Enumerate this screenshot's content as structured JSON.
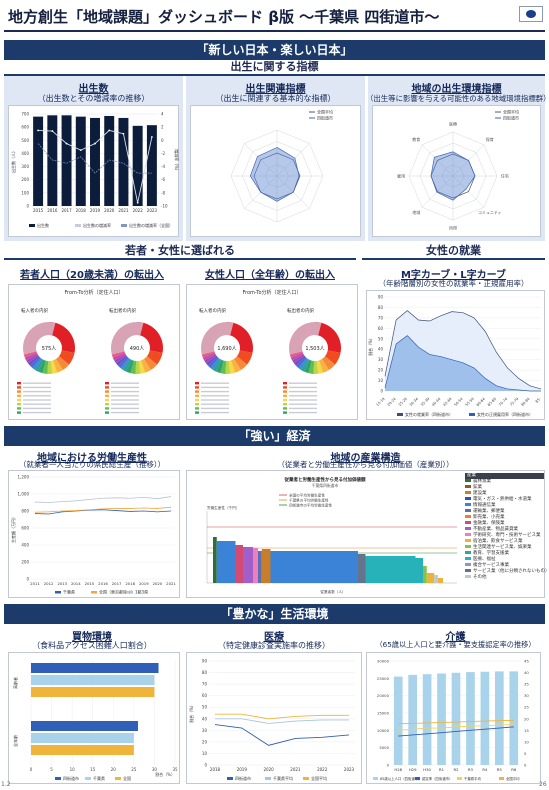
{
  "page": {
    "title": "地方創生「地域課題」ダッシュボード β版 〜千葉県 四街道市〜",
    "page_left": "1.2",
    "page_right": "26"
  },
  "section1": {
    "band": "「新しい日本・楽しい日本」",
    "sub": "出生に関する指標",
    "births": {
      "title": "出生数",
      "sub": "（出生数とその増減率の推移）",
      "chart_data": {
        "type": "bar",
        "categories": [
          "2015",
          "2016",
          "2017",
          "2018",
          "2019",
          "2020",
          "2021",
          "2022",
          "2023"
        ],
        "series": [
          {
            "name": "出生数",
            "values": [
              680,
              690,
              690,
              680,
              670,
              685,
              670,
              610,
              615
            ]
          },
          {
            "name": "出生数の増減率",
            "values": [
              1.5,
              1.4,
              -0.5,
              -1.5,
              -0.5,
              1.5,
              1.0,
              -9.5,
              0.5
            ]
          },
          {
            "name": "出生数の増減率（全国）",
            "values": [
              -0.5,
              -3.0,
              -3.5,
              -2.5,
              -5.0,
              -3.0,
              -3.5,
              -5.0,
              -5.0
            ]
          }
        ],
        "ylim": [
          0,
          700
        ],
        "y2lim": [
          -10,
          4
        ],
        "yticks": [
          "700",
          "600",
          "500",
          "400",
          "300",
          "200",
          "100",
          "0"
        ],
        "y2ticks": [
          "4",
          "2",
          "0",
          "-2",
          "-4",
          "-6",
          "-8",
          "-10"
        ],
        "ylabel": "出生数（人）",
        "y2label": "増減率（%）"
      }
    },
    "related": {
      "title": "出生関連指標",
      "sub": "（出生に関連する基本的な指標）",
      "legend": [
        "全国平均",
        "四街道市"
      ]
    },
    "environment": {
      "title": "地域の出生環境指標",
      "sub": "（出生等に影響を与える可能性のある地域環境指標群）",
      "legend": [
        "全国平均",
        "四街道市"
      ],
      "labels": [
        "医療",
        "保育",
        "住宅",
        "コミュニティ",
        "所得",
        "地域",
        "雇用",
        "教育"
      ]
    }
  },
  "section2": {
    "band_left": "若者・女性に選ばれる",
    "band_right": "女性の就業",
    "youth": {
      "title": "若者人口（20歳未満）の転出入",
      "chart_title": "From-To分析（定住人口）",
      "left_label": "転入者の内訳",
      "right_label": "転出者の内訳",
      "left_value": "575人",
      "right_value": "490人"
    },
    "women": {
      "title": "女性人口（全年齢）の転出入",
      "chart_title": "From-To分析（定住人口）",
      "left_label": "転入者の内訳",
      "right_label": "転出者の内訳",
      "left_value": "1,690人",
      "right_value": "1,503人"
    },
    "mcurve": {
      "title": "M字カーブ・L字カーブ",
      "sub": "（年齢階層別の女性の就業率・正規雇用率）",
      "ylabel": "割合（%）",
      "legend": [
        "女性の就業率（四街道市）",
        "女性の正規雇用率（四街道市）"
      ],
      "chart_data": {
        "type": "area",
        "categories": [
          "15-19",
          "20-24",
          "25-29",
          "30-34",
          "35-39",
          "40-44",
          "45-49",
          "50-54",
          "55-59",
          "60-64",
          "65-69",
          "70-74",
          "75-79",
          "80-84",
          "85-"
        ],
        "series": [
          {
            "name": "女性の就業率（四街道市）",
            "values": [
              14,
              68,
              77,
              68,
              67,
              72,
              76,
              75,
              70,
              57,
              37,
              22,
              12,
              5,
              2
            ]
          },
          {
            "name": "女性の正規雇用率（四街道市）",
            "values": [
              3,
              45,
              53,
              42,
              35,
              33,
              30,
              27,
              22,
              12,
              5,
              2,
              1,
              0,
              0
            ]
          }
        ],
        "ylim": [
          0,
          90
        ],
        "yticks": [
          "90",
          "80",
          "70",
          "60",
          "50",
          "40",
          "30",
          "20",
          "10",
          "0"
        ]
      }
    }
  },
  "section3": {
    "band": "「強い」経済",
    "productivity": {
      "title": "地域における労働生産性",
      "sub": "（就業者一人当たりの県民総生産（推移））",
      "ylabel": "生産額（万円）",
      "chart_data": {
        "type": "line",
        "categories": [
          "2011",
          "2012",
          "2013",
          "2014",
          "2015",
          "2016",
          "2017",
          "2018",
          "2019",
          "2020",
          "2021"
        ],
        "series": [
          {
            "name": "千葉県",
            "values": [
              770,
              765,
              790,
              800,
              810,
              815,
              805,
              795,
              800,
              790,
              800
            ]
          },
          {
            "name": "全国（東京都除く）",
            "values": [
              785,
              790,
              800,
              805,
              815,
              825,
              830,
              830,
              835,
              830,
              845
            ]
          },
          {
            "name": "1都3県",
            "values": [
              905,
              900,
              910,
              920,
              935,
              950,
              955,
              950,
              960,
              945,
              970
            ]
          }
        ],
        "ylim": [
          0,
          1200
        ],
        "yticks": [
          "1,200",
          "1,000",
          "800",
          "600",
          "400",
          "200",
          "0"
        ]
      },
      "legend": [
        "千葉県",
        "全国（東京都除く）",
        "1都3県"
      ]
    },
    "industry": {
      "title": "地域の産業構造",
      "sub": "（従業者と労働生産性から見る付加価値（産業別））",
      "chart_title": "従業者と労働生産性から見る付加価値額",
      "chart_sub": "千葉県四街道市",
      "lines": [
        "全国の平均労働生産性",
        "千葉県の平均労働生産性",
        "四街道市の平均労働生産性"
      ],
      "ylabel": "労働生産性（千円）",
      "xlabel": "従業者数（人）",
      "legend_header": "産業",
      "industries": [
        {
          "name": "農林漁業",
          "color": "#2f6e3a"
        },
        {
          "name": "鉱業",
          "color": "#8a5a2b"
        },
        {
          "name": "建設業",
          "color": "#c87d2b"
        },
        {
          "name": "電気・ガス・熱供給・水道業",
          "color": "#3a4fa8"
        },
        {
          "name": "情報通信業",
          "color": "#3a83d6"
        },
        {
          "name": "運輸業、郵便業",
          "color": "#5b6fb2"
        },
        {
          "name": "卸売業、小売業",
          "color": "#e0842f"
        },
        {
          "name": "金融業、保険業",
          "color": "#d34a73"
        },
        {
          "name": "不動産業、物品賃貸業",
          "color": "#a25ec9"
        },
        {
          "name": "学術研究、専門・技術サービス業",
          "color": "#ee7fbe"
        },
        {
          "name": "宿泊業、飲食サービス業",
          "color": "#e7b53a"
        },
        {
          "name": "生活関連サービス業、娯楽業",
          "color": "#85c24a"
        },
        {
          "name": "教育、学習支援業",
          "color": "#34a97c"
        },
        {
          "name": "医療、福祉",
          "color": "#26b2b8"
        },
        {
          "name": "複合サービス事業",
          "color": "#9f8ccd"
        },
        {
          "name": "サービス業（他に分類されないもの）",
          "color": "#64748b"
        },
        {
          "name": "その他",
          "color": "#bfc7d5"
        }
      ]
    }
  },
  "section4": {
    "band": "「豊かな」生活環境",
    "shopping": {
      "title": "買物環境",
      "sub": "（食料品アクセス困難人口割合）",
      "chart_data": {
        "type": "bar",
        "categories": [
          "高齢者",
          "全年齢"
        ],
        "series": [
          {
            "name": "四街道市",
            "values": [
              31,
              26
            ]
          },
          {
            "name": "千葉県",
            "values": [
              30,
              25
            ]
          },
          {
            "name": "全国",
            "values": [
              30,
              25
            ]
          }
        ],
        "xlim": [
          0,
          35
        ],
        "xticks": [
          "0",
          "5",
          "10",
          "15",
          "20",
          "25",
          "30",
          "35"
        ],
        "xlabel": "割合（%）"
      },
      "legend": [
        "四街道市",
        "千葉県",
        "全国"
      ]
    },
    "medical": {
      "title": "医療",
      "sub": "（特定健康診査実施率の推移）",
      "ylabel": "割合（%）",
      "chart_data": {
        "type": "line",
        "categories": [
          "2018",
          "2019",
          "2020",
          "2021",
          "2022",
          "2023"
        ],
        "series": [
          {
            "name": "四街道市",
            "values": [
              35,
              32,
              17,
              23,
              24,
              26
            ]
          },
          {
            "name": "千葉県平均",
            "values": [
              40,
              40,
              36,
              38,
              39,
              39
            ]
          },
          {
            "name": "全国平均",
            "values": [
              44,
              44,
              40,
              42,
              43,
              43
            ]
          }
        ],
        "ylim": [
          0,
          90
        ],
        "yticks": [
          "90",
          "80",
          "70",
          "60",
          "50",
          "40",
          "30",
          "20",
          "10",
          "0"
        ]
      },
      "legend": [
        "四街道市",
        "千葉県平均",
        "全国平均"
      ]
    },
    "care": {
      "title": "介護",
      "sub": "（65歳以上人口と要介護・要支援認定率の推移）",
      "chart_data": {
        "type": "bar",
        "categories": [
          "H28",
          "H29",
          "H30",
          "R1",
          "R2",
          "R3",
          "R4",
          "R5",
          "R6"
        ],
        "series": [
          {
            "name": "65歳以上人口（四街道市）",
            "values": [
              25500,
              26000,
              26200,
              26400,
              26600,
              26800,
              26900,
              27000,
              27000
            ]
          },
          {
            "name": "認定率（四街道市）",
            "values": [
              12.5,
              13.0,
              13.5,
              14.0,
              14.5,
              15.0,
              15.5,
              16.0,
              16.5
            ]
          },
          {
            "name": "認定率（千葉県平均）",
            "values": [
              15.0,
              15.5,
              16.0,
              16.0,
              16.5,
              16.8,
              17.0,
              17.3,
              17.5
            ]
          },
          {
            "name": "認定率（全国平均）",
            "values": [
              18.0,
              18.0,
              18.2,
              18.4,
              18.6,
              18.8,
              19.0,
              19.2,
              19.3
            ]
          }
        ],
        "ylim": [
          0,
          30000
        ],
        "y2lim": [
          0,
          45
        ],
        "yticks": [
          "30000",
          "25000",
          "20000",
          "15000",
          "10000",
          "5000",
          "0"
        ],
        "y2ticks": [
          "45",
          "40",
          "35",
          "30",
          "25",
          "20",
          "15",
          "10",
          "5",
          "0"
        ]
      },
      "legend": [
        "65歳以上人口（四街道市）",
        "認定率（四街道市）",
        "千葉県平均",
        "全国平均"
      ]
    }
  },
  "colors": {
    "navy": "#1c3b6b",
    "bar": "#0b1d3a",
    "blue": "#2f5fb6",
    "orange": "#f0b43a",
    "lightblue": "#a9d3ea",
    "red": "#d94b4b"
  }
}
